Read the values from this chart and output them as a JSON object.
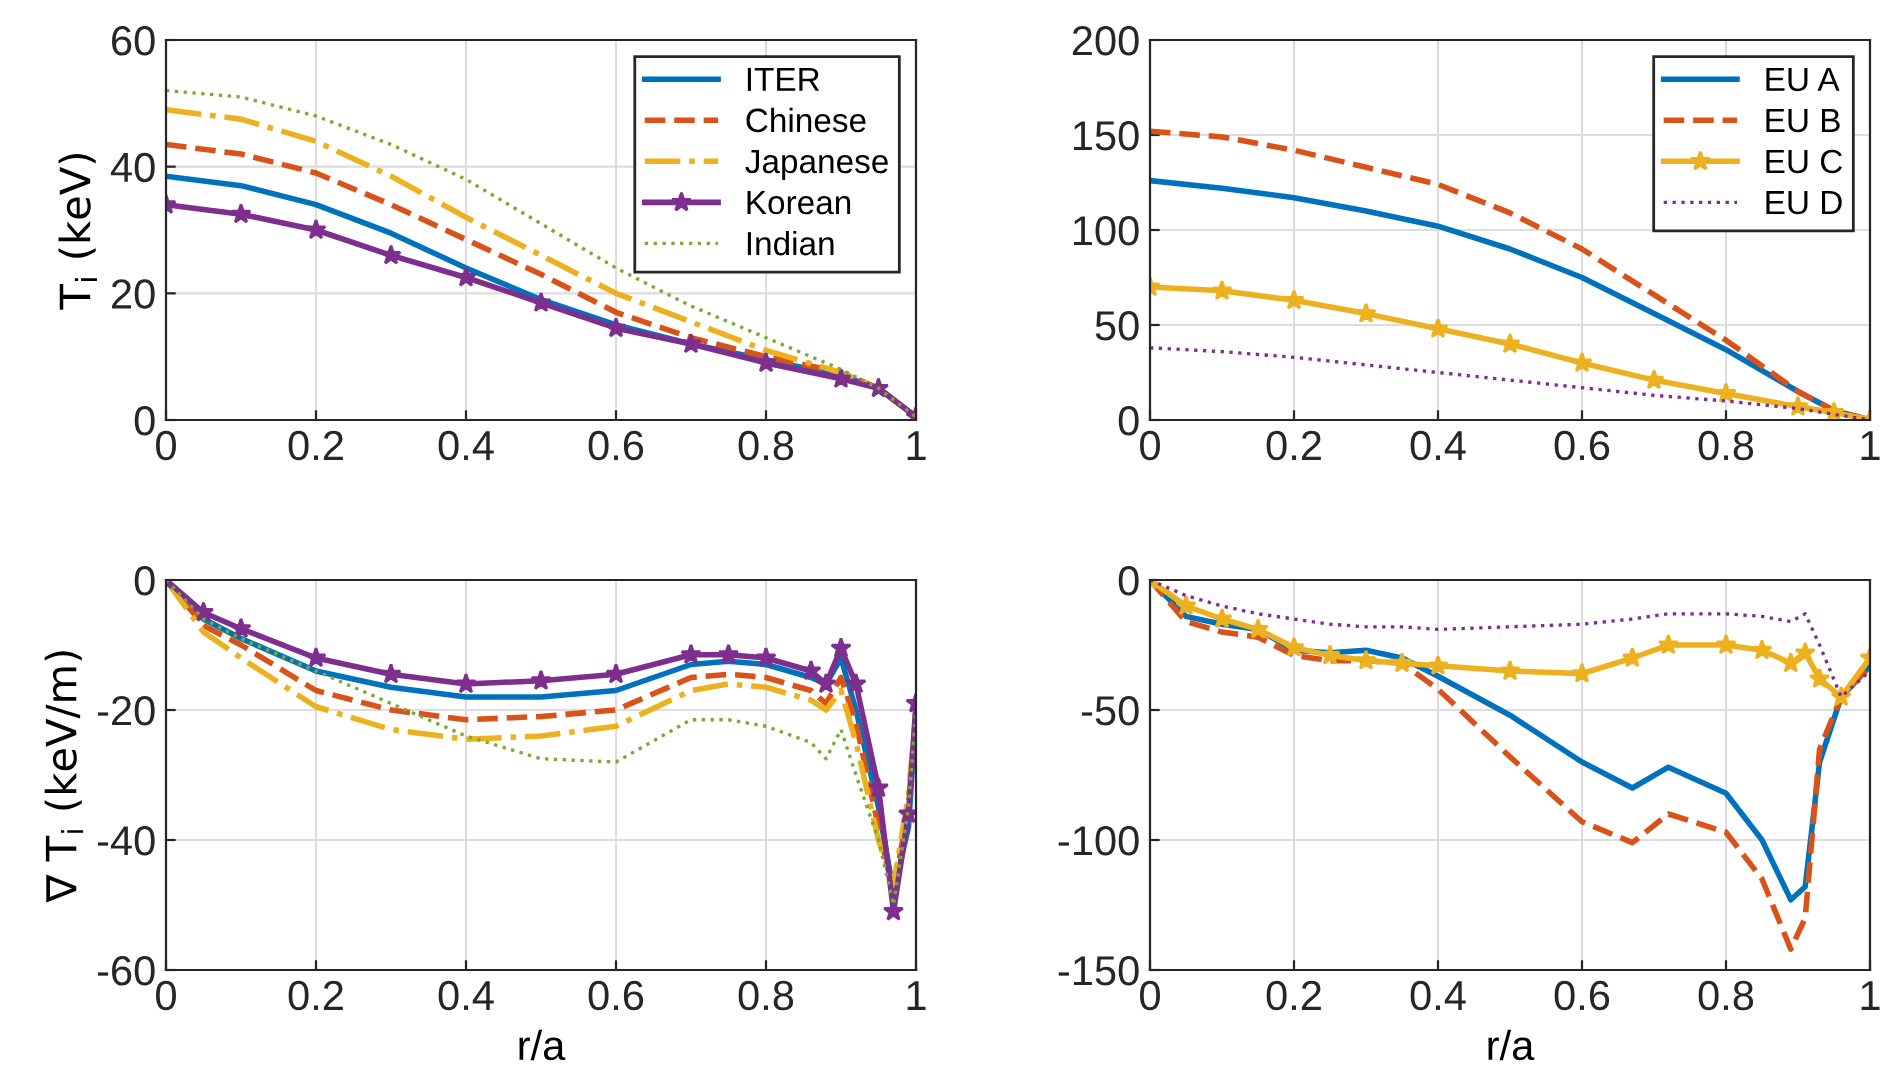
{
  "chart_data": [
    {
      "type": "line",
      "ylabel": "T$_{i}$ (keV)",
      "xlim": [
        0,
        1
      ],
      "xticks": [
        0,
        0.2,
        0.4,
        0.6,
        0.8,
        1
      ],
      "ylim": [
        0,
        60
      ],
      "yticks": [
        0,
        20,
        40,
        60
      ],
      "grid": true,
      "legend": "top right",
      "x": [
        0,
        0.1,
        0.2,
        0.3,
        0.4,
        0.5,
        0.6,
        0.7,
        0.8,
        0.9,
        0.95,
        1
      ],
      "series": [
        {
          "name": "ITER",
          "color": "#0072bd",
          "line_style": "solid",
          "values": [
            38.5,
            37,
            34,
            29.5,
            24,
            19,
            15,
            12,
            9.5,
            7,
            5,
            0.5
          ]
        },
        {
          "name": "Chinese",
          "color": "#d95319",
          "line_style": "dashed",
          "values": [
            43.5,
            42,
            39,
            34,
            28.5,
            23,
            17,
            13,
            10,
            7.5,
            5,
            0.5
          ]
        },
        {
          "name": "Japanese",
          "color": "#edb120",
          "line_style": "dashdot",
          "values": [
            49,
            47.5,
            44,
            38.5,
            32,
            26,
            20,
            15.5,
            11,
            7.5,
            5,
            0.5
          ]
        },
        {
          "name": "Korean",
          "color": "#7e2f8e",
          "line_style": "solid",
          "marker": "star",
          "values": [
            34,
            32.5,
            30,
            26,
            22.5,
            18.5,
            14.5,
            12,
            9,
            6.5,
            5,
            0.5
          ]
        },
        {
          "name": "Indian",
          "color": "#77ac30",
          "line_style": "dotted",
          "values": [
            52,
            51,
            48,
            43.5,
            38,
            31,
            24,
            18,
            13,
            8,
            5,
            0.5
          ]
        }
      ]
    },
    {
      "type": "line",
      "xlim": [
        0,
        1
      ],
      "xticks": [
        0,
        0.2,
        0.4,
        0.6,
        0.8,
        1
      ],
      "ylim": [
        0,
        200
      ],
      "yticks": [
        0,
        50,
        100,
        150,
        200
      ],
      "grid": true,
      "legend": "top right",
      "x": [
        0,
        0.1,
        0.2,
        0.3,
        0.4,
        0.5,
        0.6,
        0.7,
        0.8,
        0.9,
        0.95,
        1
      ],
      "series": [
        {
          "name": "EU A",
          "color": "#0072bd",
          "line_style": "solid",
          "values": [
            126,
            122,
            117,
            110,
            102,
            90,
            75,
            56,
            37,
            15,
            5,
            0
          ]
        },
        {
          "name": "EU B",
          "color": "#d95319",
          "line_style": "dashed",
          "values": [
            152,
            149,
            142,
            133,
            124,
            109,
            90,
            66,
            42,
            15,
            5,
            0
          ]
        },
        {
          "name": "EU C",
          "color": "#edb120",
          "line_style": "solid",
          "marker": "star",
          "values": [
            70,
            68,
            63,
            56,
            48,
            40,
            30,
            21,
            14,
            7,
            4,
            0
          ]
        },
        {
          "name": "EU D",
          "color": "#7e2f8e",
          "line_style": "dotted",
          "values": [
            38,
            36,
            33,
            29,
            25,
            21,
            17,
            13,
            10,
            6,
            3,
            0
          ]
        }
      ]
    },
    {
      "type": "line",
      "xlabel": "r/a",
      "ylabel": "∇ T$_{i}$ (keV/m)",
      "xlim": [
        0,
        1
      ],
      "xticks": [
        0,
        0.2,
        0.4,
        0.6,
        0.8,
        1
      ],
      "ylim": [
        -60,
        0
      ],
      "yticks": [
        -60,
        -40,
        -20,
        0
      ],
      "grid": true,
      "x": [
        0,
        0.05,
        0.1,
        0.2,
        0.3,
        0.4,
        0.5,
        0.6,
        0.7,
        0.75,
        0.8,
        0.86,
        0.88,
        0.9,
        0.92,
        0.95,
        0.97,
        0.99,
        1
      ],
      "series": [
        {
          "color": "#0072bd",
          "line_style": "solid",
          "values": [
            0,
            -6,
            -9,
            -14,
            -16.5,
            -18,
            -18,
            -17,
            -13,
            -12.5,
            -13,
            -15,
            -16,
            -12,
            -20,
            -35,
            -48,
            -38,
            -20
          ]
        },
        {
          "color": "#d95319",
          "line_style": "dashed",
          "values": [
            0,
            -7,
            -10,
            -17,
            -20,
            -21.5,
            -21,
            -20,
            -15,
            -14.5,
            -15,
            -17,
            -19,
            -15,
            -22,
            -38,
            -48,
            -35,
            -20
          ]
        },
        {
          "color": "#edb120",
          "line_style": "dashdot",
          "values": [
            0,
            -8,
            -12,
            -19.5,
            -23,
            -24.5,
            -24,
            -22.5,
            -17,
            -16,
            -16.5,
            -18.5,
            -20,
            -17,
            -25,
            -40,
            -47,
            -33,
            -20
          ]
        },
        {
          "color": "#7e2f8e",
          "line_style": "solid",
          "marker": "star",
          "values": [
            0,
            -5,
            -7.5,
            -12,
            -14.5,
            -16,
            -15.5,
            -14.5,
            -11.5,
            -11.5,
            -12,
            -14,
            -16,
            -10.5,
            -16,
            -32,
            -51,
            -36,
            -19
          ]
        },
        {
          "color": "#77ac30",
          "line_style": "dotted",
          "values": [
            0,
            -6,
            -9,
            -14,
            -19,
            -24,
            -27.5,
            -28,
            -21.5,
            -21.5,
            -22.5,
            -25,
            -27.5,
            -23,
            -30,
            -40,
            -50,
            -35,
            -20
          ]
        }
      ]
    },
    {
      "type": "line",
      "xlabel": "r/a",
      "xlim": [
        0,
        1
      ],
      "xticks": [
        0,
        0.2,
        0.4,
        0.6,
        0.8,
        1
      ],
      "ylim": [
        -150,
        0
      ],
      "yticks": [
        -150,
        -100,
        -50,
        0
      ],
      "grid": true,
      "x": [
        0,
        0.05,
        0.1,
        0.15,
        0.2,
        0.25,
        0.3,
        0.35,
        0.4,
        0.5,
        0.6,
        0.67,
        0.72,
        0.8,
        0.85,
        0.89,
        0.91,
        0.93,
        0.96,
        1
      ],
      "series": [
        {
          "color": "#0072bd",
          "line_style": "solid",
          "values": [
            0,
            -14,
            -17,
            -19,
            -27,
            -28,
            -27,
            -30,
            -37,
            -52,
            -70,
            -80,
            -72,
            -82,
            -100,
            -123,
            -118,
            -70,
            -45,
            -33
          ]
        },
        {
          "color": "#d95319",
          "line_style": "dashed",
          "values": [
            0,
            -16,
            -20,
            -22,
            -29,
            -31,
            -31,
            -32,
            -42,
            -68,
            -93,
            -101,
            -90,
            -97,
            -115,
            -142,
            -130,
            -65,
            -45,
            -33
          ]
        },
        {
          "color": "#edb120",
          "line_style": "solid",
          "marker": "star",
          "values": [
            0,
            -10,
            -15,
            -19,
            -26,
            -29,
            -31,
            -32,
            -33,
            -35,
            -36,
            -30,
            -25,
            -25,
            -27,
            -32,
            -28,
            -38,
            -45,
            -30
          ]
        },
        {
          "color": "#7e2f8e",
          "line_style": "dotted",
          "values": [
            0,
            -6,
            -10,
            -13,
            -15,
            -17,
            -18,
            -18,
            -19,
            -18,
            -17,
            -15,
            -13,
            -13,
            -14,
            -16,
            -13,
            -25,
            -45,
            -35
          ]
        }
      ]
    }
  ]
}
